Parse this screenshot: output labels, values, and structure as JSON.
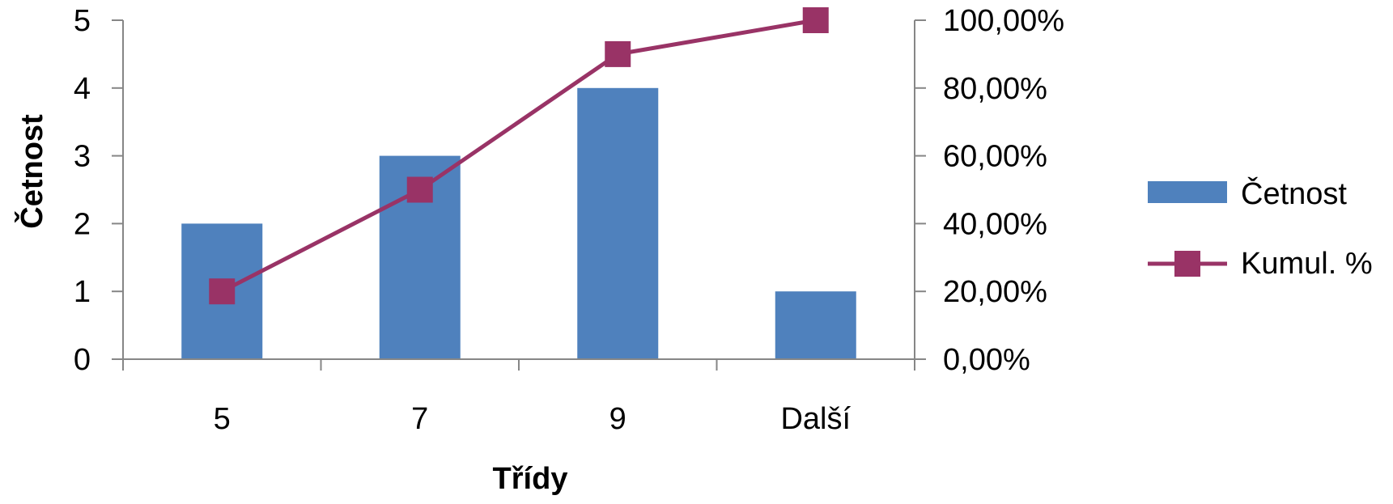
{
  "chart_data": {
    "type": "bar",
    "categories": [
      "5",
      "7",
      "9",
      "Další"
    ],
    "series": [
      {
        "name": "Četnost",
        "type": "bar",
        "axis": "left",
        "color": "#4F81BD",
        "values": [
          2,
          3,
          4,
          1
        ]
      },
      {
        "name": "Kumul. %",
        "type": "line",
        "axis": "right",
        "marker": "square",
        "color": "#993366",
        "values": [
          20,
          50,
          90,
          100
        ]
      }
    ],
    "xlabel": "Třídy",
    "ylabel": "Četnost",
    "ylim": [
      0,
      5
    ],
    "y_ticks": [
      "0",
      "1",
      "2",
      "3",
      "4",
      "5"
    ],
    "y2lim": [
      0,
      100
    ],
    "y2_ticks": [
      "0,00%",
      "20,00%",
      "40,00%",
      "60,00%",
      "80,00%",
      "100,00%"
    ],
    "grid": false,
    "legend_position": "right"
  }
}
